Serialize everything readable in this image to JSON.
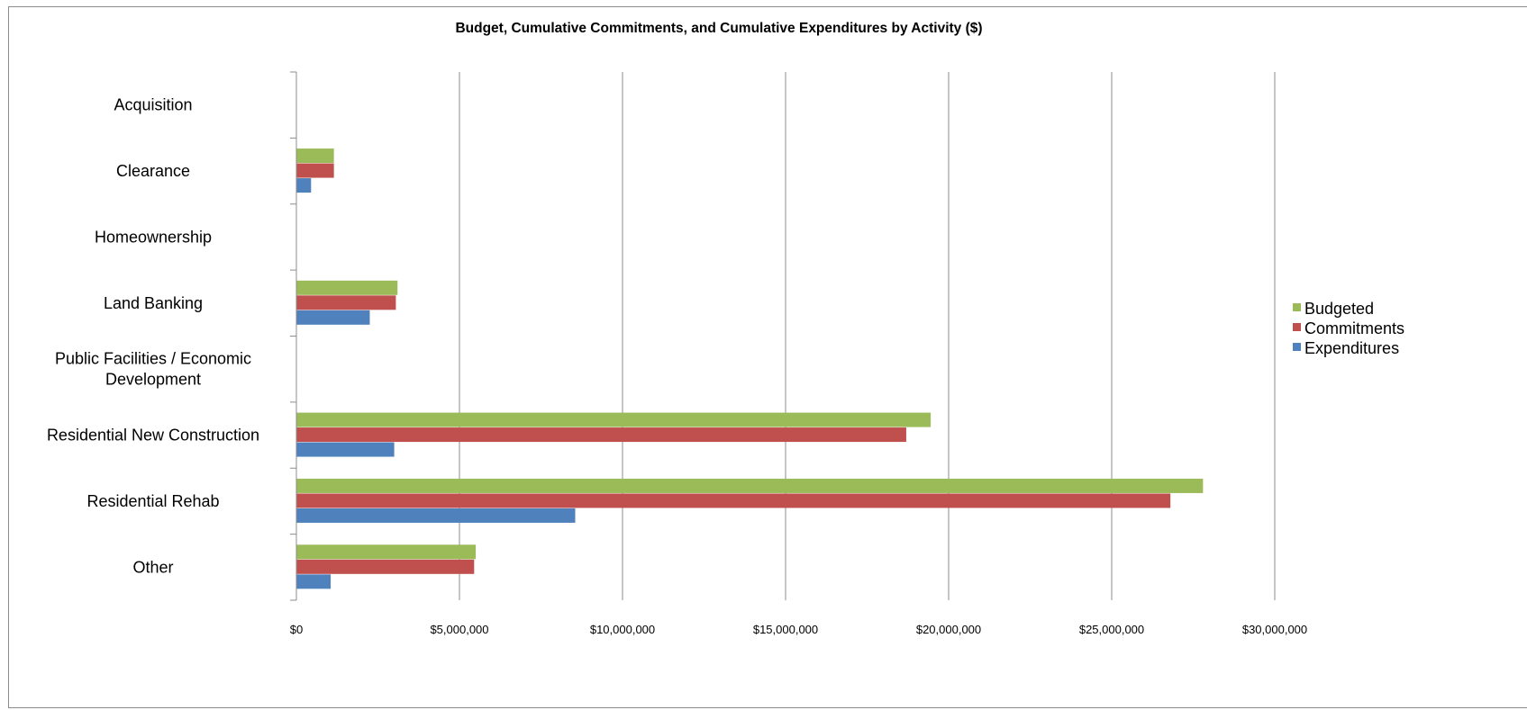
{
  "chart_data": {
    "type": "bar",
    "orientation": "horizontal",
    "title": "Budget, Cumulative Commitments, and Cumulative Expenditures by Activity ($)",
    "xlabel": "",
    "ylabel": "",
    "categories": [
      "Acquisition",
      "Clearance",
      "Homeownership",
      "Land Banking",
      "Public Facilities / Economic Development",
      "Residential New Construction",
      "Residential Rehab",
      "Other"
    ],
    "series": [
      {
        "name": "Budgeted",
        "color": "#9bbb59",
        "values": [
          0,
          1150000,
          0,
          3100000,
          0,
          19450000,
          27800000,
          5500000
        ]
      },
      {
        "name": "Commitments",
        "color": "#c0504d",
        "values": [
          0,
          1150000,
          0,
          3050000,
          0,
          18700000,
          26800000,
          5450000
        ]
      },
      {
        "name": "Expenditures",
        "color": "#4f81bd",
        "values": [
          0,
          450000,
          0,
          2250000,
          0,
          3000000,
          8550000,
          1050000
        ]
      }
    ],
    "xlim": [
      0,
      30000000
    ],
    "x_ticks": [
      "$0",
      "$5,000,000",
      "$10,000,000",
      "$15,000,000",
      "$20,000,000",
      "$25,000,000",
      "$30,000,000"
    ],
    "x_tick_values": [
      0,
      5000000,
      10000000,
      15000000,
      20000000,
      25000000,
      30000000
    ],
    "grid": true,
    "legend_position": "right",
    "legend_order": [
      "Budgeted",
      "Commitments",
      "Expenditures"
    ]
  }
}
